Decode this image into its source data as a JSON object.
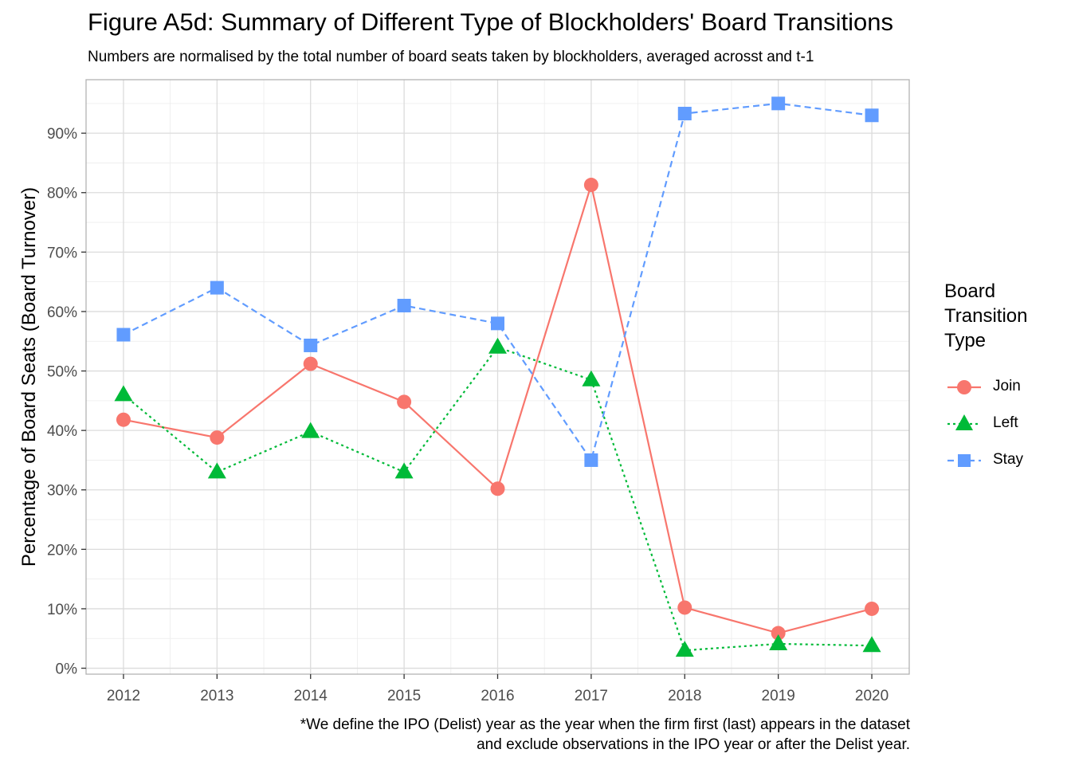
{
  "title": "Figure A5d: Summary of Different Type of Blockholders' Board Transitions",
  "subtitle": "Numbers are normalised by the total number of board seats taken by blockholders, averaged acrosst and t-1",
  "caption_line1": "*We define the IPO (Delist) year as the year when the firm first (last) appears in the dataset",
  "caption_line2": "and exclude observations in the IPO year or after the Delist year.",
  "legend": {
    "title": "Board Transition Type",
    "items": [
      {
        "label": "Join",
        "color": "#F8766D",
        "shape": "circle",
        "dash": "solid"
      },
      {
        "label": "Left",
        "color": "#00BA38",
        "shape": "triangle",
        "dash": "dotted"
      },
      {
        "label": "Stay",
        "color": "#619CFF",
        "shape": "square",
        "dash": "dashed"
      }
    ]
  },
  "chart_data": {
    "type": "line",
    "title": "Figure A5d: Summary of Different Type of Blockholders' Board Transitions",
    "ylabel": "Percentage of Board Seats (Board Turnover)",
    "xlabel": "",
    "x": [
      2012,
      2013,
      2014,
      2015,
      2016,
      2017,
      2018,
      2019,
      2020
    ],
    "xlim": [
      2011.6,
      2020.4
    ],
    "ylim": [
      -0.01,
      0.99
    ],
    "yticks": [
      0,
      0.1,
      0.2,
      0.3,
      0.4,
      0.5,
      0.6,
      0.7,
      0.8,
      0.9
    ],
    "ytick_labels": [
      "0%",
      "10%",
      "20%",
      "30%",
      "40%",
      "50%",
      "60%",
      "70%",
      "80%",
      "90%"
    ],
    "grid": true,
    "legend_position": "right",
    "series": [
      {
        "name": "Join",
        "color": "#F8766D",
        "shape": "circle",
        "dash": "solid",
        "values": [
          0.418,
          0.388,
          0.512,
          0.448,
          0.302,
          0.813,
          0.102,
          0.059,
          0.1
        ]
      },
      {
        "name": "Left",
        "color": "#00BA38",
        "shape": "triangle",
        "dash": "dotted",
        "values": [
          0.46,
          0.33,
          0.398,
          0.33,
          0.54,
          0.485,
          0.03,
          0.041,
          0.038
        ]
      },
      {
        "name": "Stay",
        "color": "#619CFF",
        "shape": "square",
        "dash": "dashed",
        "values": [
          0.561,
          0.64,
          0.543,
          0.61,
          0.58,
          0.35,
          0.933,
          0.95,
          0.93
        ]
      }
    ]
  }
}
